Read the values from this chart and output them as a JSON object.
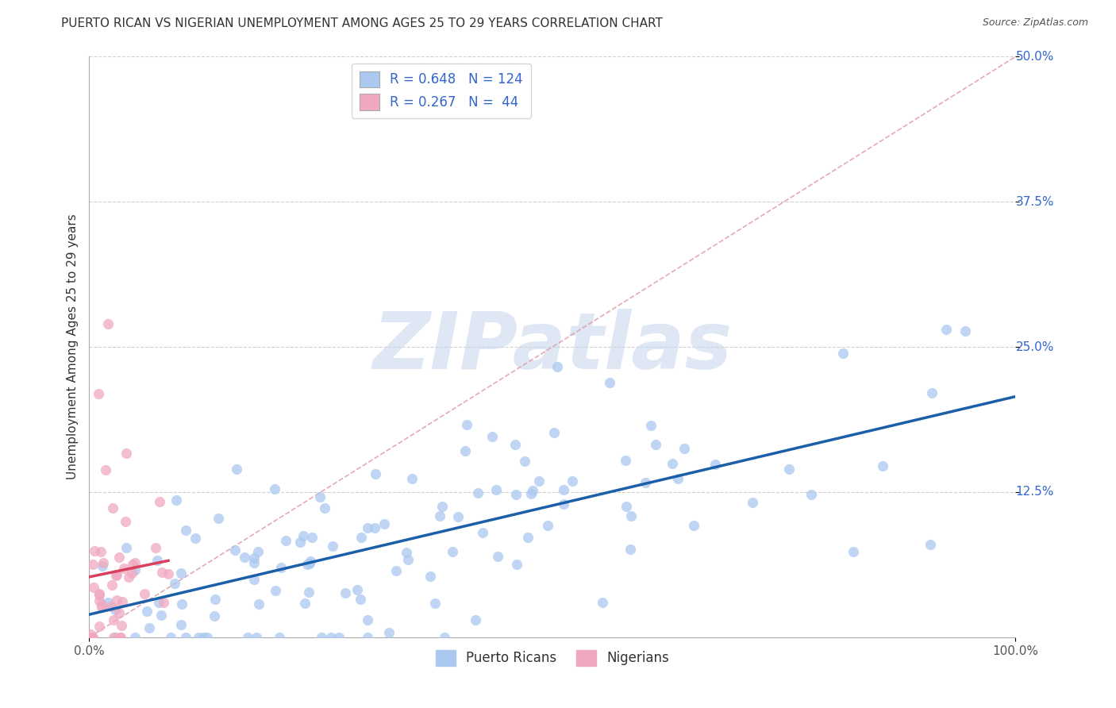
{
  "title": "PUERTO RICAN VS NIGERIAN UNEMPLOYMENT AMONG AGES 25 TO 29 YEARS CORRELATION CHART",
  "source": "Source: ZipAtlas.com",
  "ylabel": "Unemployment Among Ages 25 to 29 years",
  "watermark": "ZIPatlas",
  "legend_bottom": [
    "Puerto Ricans",
    "Nigerians"
  ],
  "blue_R": 0.648,
  "blue_N": 124,
  "pink_R": 0.267,
  "pink_N": 44,
  "blue_color": "#aac8f0",
  "pink_color": "#f0a8c0",
  "blue_line_color": "#1a5fa8",
  "pink_line_color": "#d94060",
  "ref_line_color": "#e0a0b0",
  "xlim": [
    0.0,
    1.0
  ],
  "ylim": [
    0.0,
    0.5
  ],
  "xticks": [
    0.0,
    1.0
  ],
  "yticks": [
    0.125,
    0.25,
    0.375,
    0.5
  ],
  "xticklabels": [
    "0.0%",
    "100.0%"
  ],
  "yticklabels": [
    "12.5%",
    "25.0%",
    "37.5%",
    "50.0%"
  ],
  "background_color": "#ffffff",
  "grid_color": "#cccccc",
  "title_fontsize": 11,
  "axis_label_fontsize": 11,
  "tick_fontsize": 11,
  "legend_fontsize": 12,
  "watermark_fontsize": 72,
  "watermark_color": "#c8d8ec",
  "watermark_alpha": 0.6,
  "tick_color": "#3366cc",
  "axis_color": "#aaaaaa"
}
